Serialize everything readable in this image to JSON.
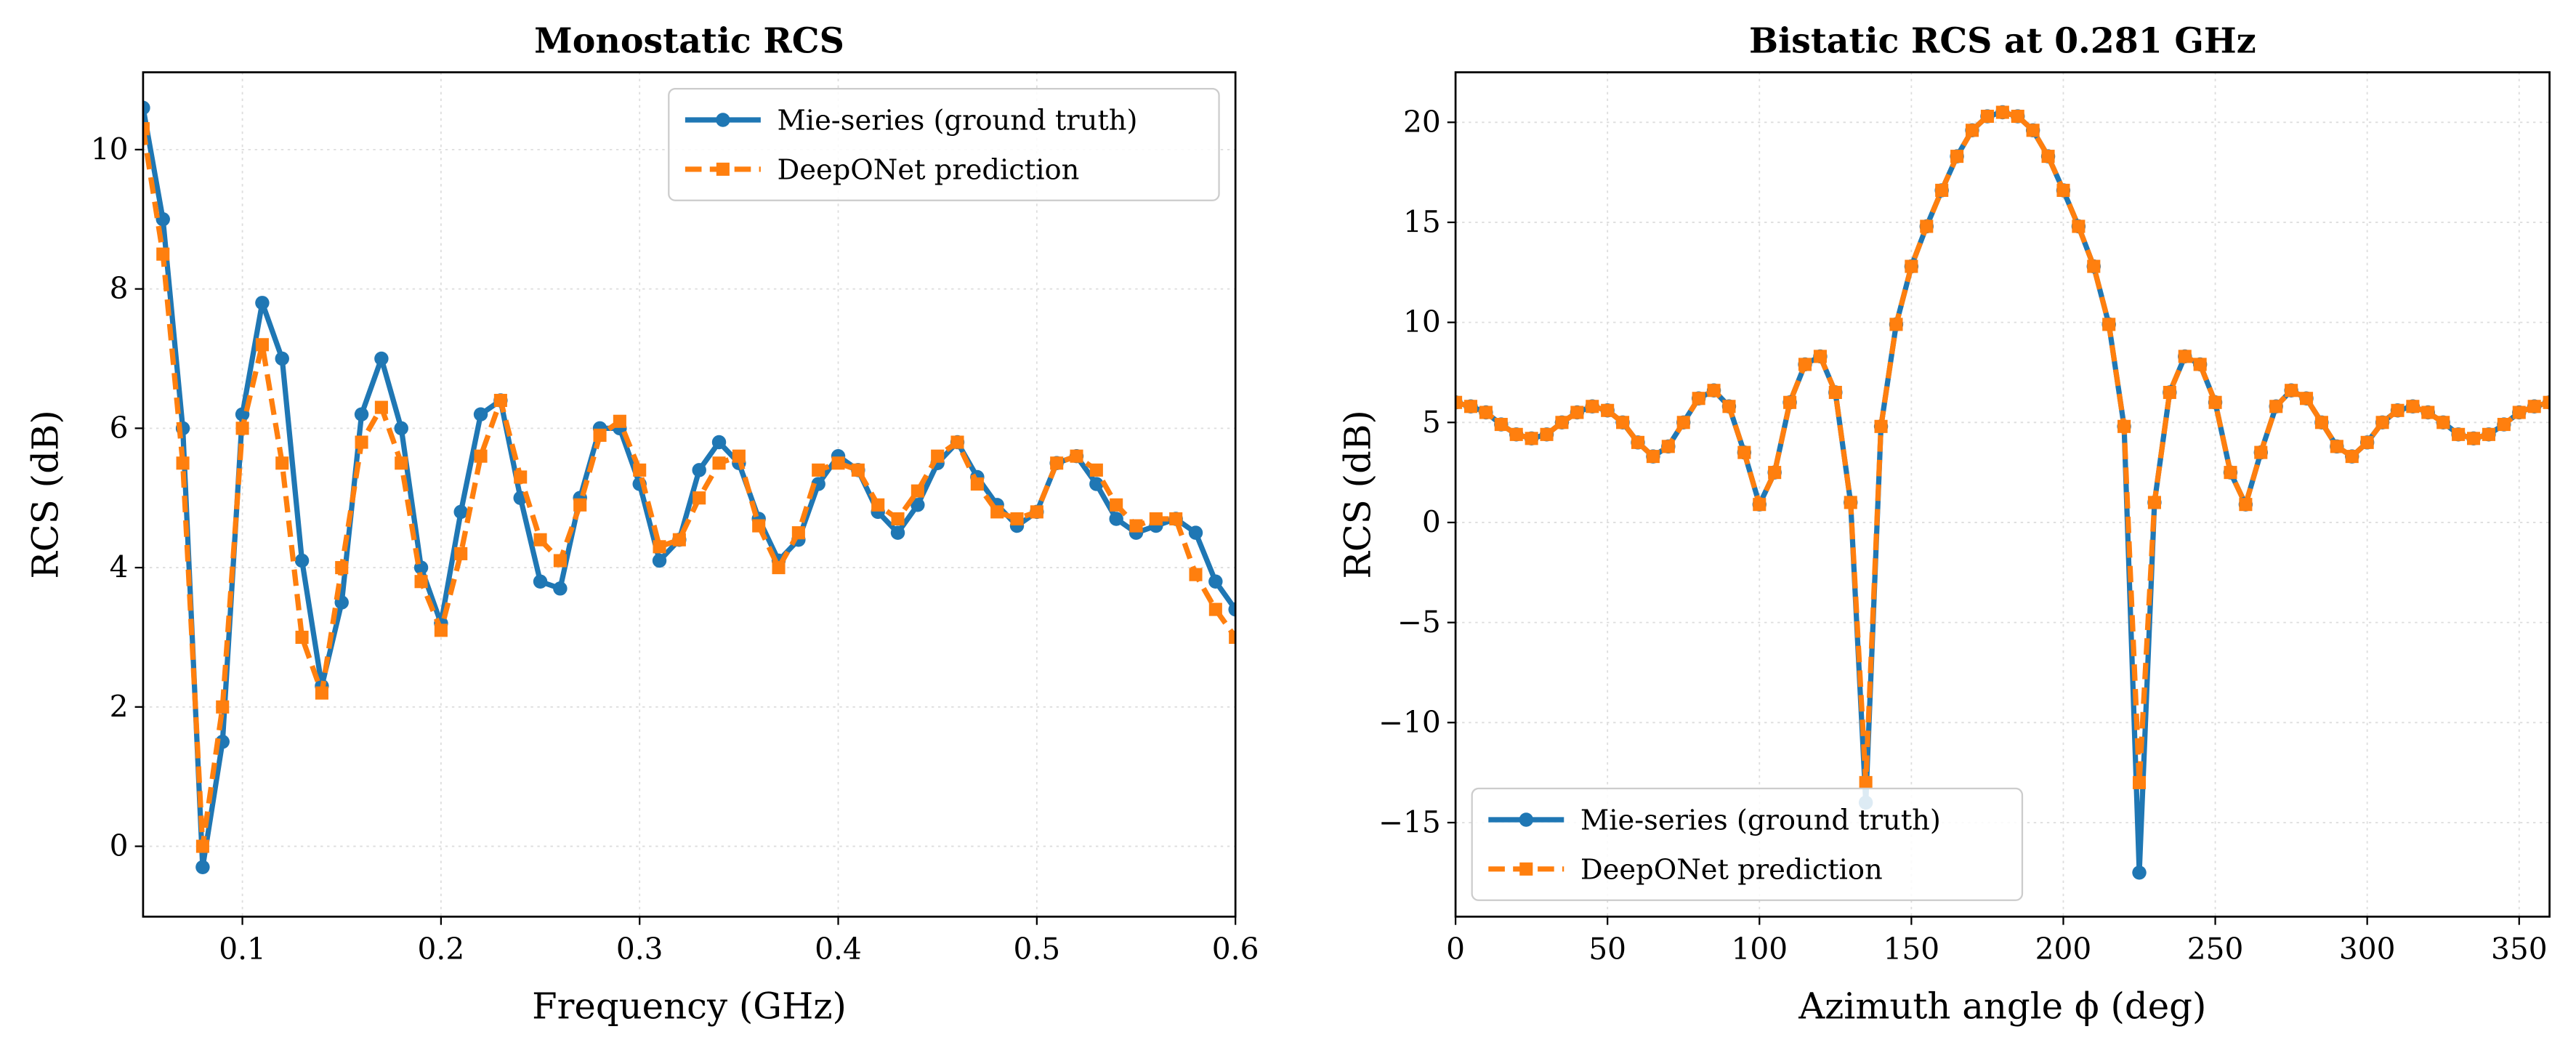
{
  "chart_data": [
    {
      "type": "line",
      "title": "Monostatic RCS",
      "xlabel": "Frequency (GHz)",
      "ylabel": "RCS (dB)",
      "x": [
        0.05,
        0.06,
        0.07,
        0.08,
        0.09,
        0.1,
        0.11,
        0.12,
        0.13,
        0.14,
        0.15,
        0.16,
        0.17,
        0.18,
        0.19,
        0.2,
        0.21,
        0.22,
        0.23,
        0.24,
        0.25,
        0.26,
        0.27,
        0.28,
        0.29,
        0.3,
        0.31,
        0.32,
        0.33,
        0.34,
        0.35,
        0.36,
        0.37,
        0.38,
        0.39,
        0.4,
        0.41,
        0.42,
        0.43,
        0.44,
        0.45,
        0.46,
        0.47,
        0.48,
        0.49,
        0.5,
        0.51,
        0.52,
        0.53,
        0.54,
        0.55,
        0.56,
        0.57,
        0.58,
        0.59,
        0.6
      ],
      "series": [
        {
          "name": "Mie-series (ground truth)",
          "color": "#1f77b4",
          "marker": "o",
          "linestyle": "solid",
          "values": [
            10.6,
            9.0,
            6.0,
            -0.3,
            1.5,
            6.2,
            7.8,
            7.0,
            4.1,
            2.3,
            3.5,
            6.2,
            7.0,
            6.0,
            4.0,
            3.2,
            4.8,
            6.2,
            6.4,
            5.0,
            3.8,
            3.7,
            5.0,
            6.0,
            6.0,
            5.2,
            4.1,
            4.4,
            5.4,
            5.8,
            5.5,
            4.7,
            4.1,
            4.4,
            5.2,
            5.6,
            5.4,
            4.8,
            4.5,
            4.9,
            5.5,
            5.8,
            5.3,
            4.9,
            4.6,
            4.8,
            5.5,
            5.6,
            5.2,
            4.7,
            4.5,
            4.6,
            4.7,
            4.5,
            3.8,
            3.4
          ]
        },
        {
          "name": "DeepONet prediction",
          "color": "#ff7f0e",
          "marker": "s",
          "linestyle": "dashed",
          "values": [
            10.3,
            8.5,
            5.5,
            0.0,
            2.0,
            6.0,
            7.2,
            5.5,
            3.0,
            2.2,
            4.0,
            5.8,
            6.3,
            5.5,
            3.8,
            3.1,
            4.2,
            5.6,
            6.4,
            5.3,
            4.4,
            4.1,
            4.9,
            5.9,
            6.1,
            5.4,
            4.3,
            4.4,
            5.0,
            5.5,
            5.6,
            4.6,
            4.0,
            4.5,
            5.4,
            5.5,
            5.4,
            4.9,
            4.7,
            5.1,
            5.6,
            5.8,
            5.2,
            4.8,
            4.7,
            4.8,
            5.5,
            5.6,
            5.4,
            4.9,
            4.6,
            4.7,
            4.7,
            3.9,
            3.4,
            3.0
          ]
        }
      ],
      "xlim": [
        0.05,
        0.6
      ],
      "xticks": [
        0.1,
        0.2,
        0.3,
        0.4,
        0.5,
        0.6
      ],
      "ylim": [
        -1.01,
        11.11
      ],
      "yticks": [
        0,
        2,
        4,
        6,
        8,
        10
      ],
      "grid": true,
      "legend": "upper right"
    },
    {
      "type": "line",
      "title": "Bistatic RCS at 0.281 GHz",
      "xlabel": "Azimuth angle ϕ (deg)",
      "ylabel": "RCS (dB)",
      "x": [
        0,
        5,
        10,
        15,
        20,
        25,
        30,
        35,
        40,
        45,
        50,
        55,
        60,
        65,
        70,
        75,
        80,
        85,
        90,
        95,
        100,
        105,
        110,
        115,
        120,
        125,
        130,
        135,
        140,
        145,
        150,
        155,
        160,
        165,
        170,
        175,
        180,
        185,
        190,
        195,
        200,
        205,
        210,
        215,
        220,
        225,
        230,
        235,
        240,
        245,
        250,
        255,
        260,
        265,
        270,
        275,
        280,
        285,
        290,
        295,
        300,
        305,
        310,
        315,
        320,
        325,
        330,
        335,
        340,
        345,
        350,
        355,
        360
      ],
      "series": [
        {
          "name": "Mie-series (ground truth)",
          "color": "#1f77b4",
          "marker": "o",
          "linestyle": "solid",
          "values": [
            6.0,
            5.8,
            5.5,
            4.9,
            4.4,
            4.2,
            4.4,
            5.0,
            5.5,
            5.8,
            5.6,
            5.0,
            4.0,
            3.3,
            3.8,
            5.0,
            6.2,
            6.6,
            5.8,
            3.5,
            0.9,
            2.5,
            6.0,
            7.9,
            8.3,
            6.5,
            1.0,
            -14.0,
            4.8,
            9.9,
            12.8,
            14.8,
            16.6,
            18.3,
            19.6,
            20.3,
            20.5,
            20.3,
            19.6,
            18.3,
            16.6,
            14.8,
            12.8,
            9.9,
            4.8,
            -17.5,
            1.0,
            6.5,
            8.3,
            7.9,
            6.0,
            2.5,
            0.9,
            3.5,
            5.8,
            6.6,
            6.2,
            5.0,
            3.8,
            3.3,
            4.0,
            5.0,
            5.6,
            5.8,
            5.5,
            5.0,
            4.4,
            4.2,
            4.4,
            4.9,
            5.5,
            5.8,
            6.0
          ]
        },
        {
          "name": "DeepONet prediction",
          "color": "#ff7f0e",
          "marker": "s",
          "linestyle": "dashed",
          "values": [
            6.0,
            5.8,
            5.5,
            4.9,
            4.4,
            4.2,
            4.4,
            5.0,
            5.5,
            5.8,
            5.6,
            5.0,
            4.0,
            3.3,
            3.8,
            5.0,
            6.2,
            6.6,
            5.8,
            3.5,
            0.9,
            2.5,
            6.0,
            7.9,
            8.3,
            6.5,
            1.0,
            -13.0,
            4.8,
            9.9,
            12.8,
            14.8,
            16.6,
            18.3,
            19.6,
            20.3,
            20.5,
            20.3,
            19.6,
            18.3,
            16.6,
            14.8,
            12.8,
            9.9,
            4.8,
            -13.0,
            1.0,
            6.5,
            8.3,
            7.9,
            6.0,
            2.5,
            0.9,
            3.5,
            5.8,
            6.6,
            6.2,
            5.0,
            3.8,
            3.3,
            4.0,
            5.0,
            5.6,
            5.8,
            5.5,
            5.0,
            4.4,
            4.2,
            4.4,
            4.9,
            5.5,
            5.8,
            6.0
          ]
        }
      ],
      "xlim": [
        0,
        360
      ],
      "xticks": [
        0,
        50,
        100,
        150,
        200,
        250,
        300,
        350
      ],
      "ylim": [
        -19.7,
        22.5
      ],
      "yticks": [
        {
          "value": -15,
          "label": "−15"
        },
        {
          "value": -10,
          "label": "−10"
        },
        {
          "value": -5,
          "label": "−5"
        },
        0,
        5,
        10,
        15,
        20
      ],
      "grid": true,
      "legend": "lower left"
    }
  ]
}
